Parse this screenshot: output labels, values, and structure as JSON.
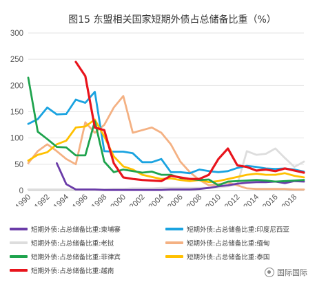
{
  "chart_data": {
    "type": "line",
    "title": "图15 东盟相关国家短期外债占总储备比重（%）",
    "xlabel": "",
    "ylabel": "",
    "xlim": [
      1990,
      2019
    ],
    "ylim": [
      0,
      300
    ],
    "yticks": [
      0,
      50,
      100,
      150,
      200,
      250,
      300
    ],
    "xticks": [
      1990,
      1992,
      1994,
      1996,
      1998,
      2000,
      2002,
      2004,
      2006,
      2008,
      2010,
      2012,
      2014,
      2016,
      2018
    ],
    "grid": true,
    "legend_position": "bottom",
    "series": [
      {
        "name": "短期外债:占总储备比重:柬埔寨",
        "color": "#6a3ba8",
        "x": [
          1993,
          1994,
          1995,
          1996,
          1997,
          1998,
          1999,
          2000,
          2001,
          2002,
          2003,
          2004,
          2005,
          2006,
          2007,
          2008,
          2009,
          2010,
          2011,
          2012,
          2013,
          2014,
          2015,
          2016,
          2017,
          2018,
          2019
        ],
        "y": [
          52,
          12,
          2,
          2,
          2,
          1,
          1,
          1,
          1,
          1,
          1,
          1,
          2,
          2,
          2,
          3,
          5,
          8,
          10,
          13,
          15,
          16,
          16,
          17,
          14,
          18,
          17
        ]
      },
      {
        "name": "短期外债:占总储备比重:印度尼西亚",
        "color": "#1aa3e0",
        "x": [
          1990,
          1991,
          1992,
          1993,
          1994,
          1995,
          1996,
          1997,
          1998,
          1999,
          2000,
          2001,
          2002,
          2003,
          2004,
          2005,
          2006,
          2007,
          2008,
          2009,
          2010,
          2011,
          2012,
          2013,
          2014,
          2015,
          2016,
          2017,
          2018,
          2019
        ],
        "y": [
          127,
          136,
          158,
          145,
          146,
          173,
          167,
          188,
          75,
          74,
          74,
          71,
          54,
          54,
          60,
          35,
          35,
          33,
          40,
          37,
          35,
          37,
          43,
          47,
          45,
          42,
          41,
          42,
          40,
          36
        ]
      },
      {
        "name": "短期外债:占总储备比重:老挝",
        "color": "#dddddd",
        "x": [
          1990,
          1991,
          1992,
          1993,
          1994,
          1995,
          1996,
          1997,
          1998,
          1999,
          2000,
          2001,
          2002,
          2003,
          2004,
          2005,
          2006,
          2007,
          2008,
          2009,
          2010,
          2011,
          2012,
          2013,
          2014,
          2015,
          2016,
          2017,
          2018,
          2019
        ],
        "y": [
          2,
          2,
          2,
          2,
          2,
          2,
          2,
          2,
          2,
          3,
          3,
          4,
          4,
          4,
          5,
          5,
          5,
          5,
          5,
          5,
          6,
          8,
          12,
          75,
          68,
          70,
          80,
          62,
          45,
          55
        ]
      },
      {
        "name": "短期外债:占总储备比重:缅甸",
        "color": "#f4b183",
        "x": [
          1990,
          1991,
          1992,
          1993,
          1994,
          1995,
          1996,
          1997,
          1998,
          1999,
          2000,
          2001,
          2002,
          2003,
          2004,
          2005,
          2006,
          2007,
          2008,
          2009,
          2010,
          2011,
          2012,
          2013,
          2014,
          2015,
          2016,
          2017,
          2018,
          2019
        ],
        "y": [
          52,
          75,
          88,
          75,
          60,
          50,
          130,
          110,
          125,
          158,
          180,
          110,
          115,
          120,
          110,
          88,
          55,
          35,
          20,
          10,
          12,
          15,
          10,
          4,
          3,
          3,
          3,
          3,
          2,
          2
        ]
      },
      {
        "name": "短期外债:占总储备比重:菲律宾",
        "color": "#1ea34d",
        "x": [
          1990,
          1991,
          1992,
          1993,
          1994,
          1995,
          1996,
          1997,
          1998,
          1999,
          2000,
          2001,
          2002,
          2003,
          2004,
          2005,
          2006,
          2007,
          2008,
          2009,
          2010,
          2011,
          2012,
          2013,
          2014,
          2015,
          2016,
          2017,
          2018,
          2019
        ],
        "y": [
          215,
          112,
          98,
          83,
          82,
          67,
          67,
          132,
          55,
          35,
          40,
          37,
          34,
          36,
          30,
          30,
          24,
          22,
          20,
          21,
          10,
          17,
          18,
          19,
          20,
          19,
          17,
          18,
          19,
          20
        ]
      },
      {
        "name": "短期外债:占总储备比重:泰国",
        "color": "#ffc000",
        "x": [
          1990,
          1991,
          1992,
          1993,
          1994,
          1995,
          1996,
          1997,
          1998,
          1999,
          2000,
          2001,
          2002,
          2003,
          2004,
          2005,
          2006,
          2007,
          2008,
          2009,
          2010,
          2011,
          2012,
          2013,
          2014,
          2015,
          2016,
          2017,
          2018,
          2019
        ],
        "y": [
          57,
          68,
          73,
          88,
          95,
          120,
          122,
          135,
          103,
          65,
          46,
          40,
          30,
          26,
          22,
          23,
          20,
          18,
          20,
          16,
          18,
          22,
          26,
          30,
          32,
          30,
          30,
          33,
          28,
          25
        ]
      },
      {
        "name": "短期外债:占总储备比重:越南",
        "color": "#e8141c",
        "x": [
          1995,
          1996,
          1997,
          1998,
          1999,
          2000,
          2001,
          2002,
          2003,
          2004,
          2005,
          2006,
          2007,
          2008,
          2009,
          2010,
          2011,
          2012,
          2013,
          2014,
          2015,
          2016,
          2017,
          2018,
          2019
        ],
        "y": [
          245,
          218,
          120,
          115,
          52,
          25,
          22,
          20,
          19,
          18,
          28,
          25,
          22,
          22,
          30,
          60,
          80,
          48,
          45,
          38,
          40,
          37,
          42,
          38,
          34
        ]
      }
    ]
  },
  "legend": {
    "items": [
      {
        "label": "短期外债:占总储备比重:柬埔寨",
        "color": "#6a3ba8"
      },
      {
        "label": "短期外债:占总储备比重:印度尼西亚",
        "color": "#1aa3e0"
      },
      {
        "label": "短期外债:占总储备比重:老挝",
        "color": "#dddddd"
      },
      {
        "label": "短期外债:占总储备比重:缅甸",
        "color": "#f4b183"
      },
      {
        "label": "短期外债:占总储备比重:菲律宾",
        "color": "#1ea34d"
      },
      {
        "label": "短期外债:占总储备比重:泰国",
        "color": "#ffc000"
      },
      {
        "label": "短期外债:占总储备比重:越南",
        "color": "#e8141c"
      }
    ]
  },
  "watermark": {
    "text": "国际国际"
  }
}
